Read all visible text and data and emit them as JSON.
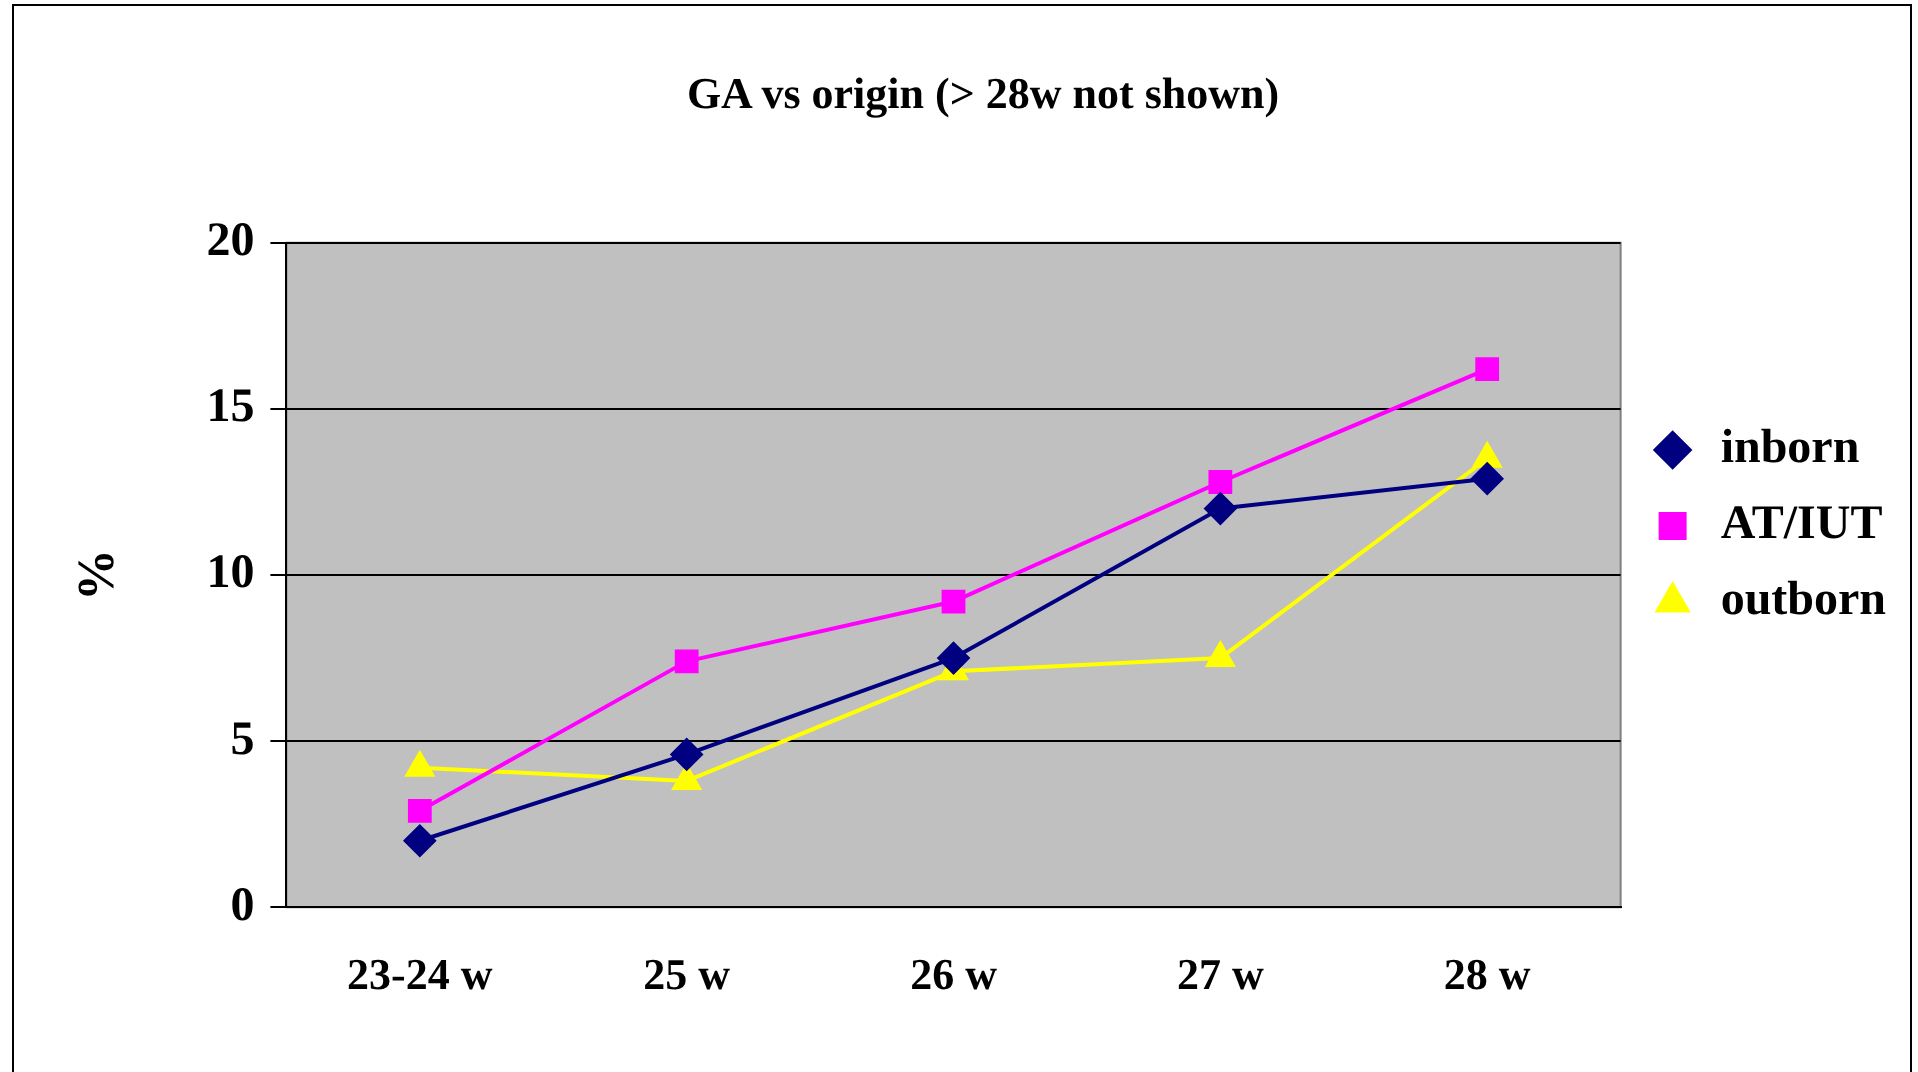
{
  "chart_data": {
    "type": "line",
    "title": "GA vs origin (> 28w not shown)",
    "ylabel": "%",
    "categories": [
      "23-24 w",
      "25 w",
      "26 w",
      "27 w",
      "28 w"
    ],
    "series": [
      {
        "name": "inborn",
        "color": "#000080",
        "marker": "diamond",
        "values": [
          2.0,
          4.6,
          7.5,
          12.0,
          12.9
        ]
      },
      {
        "name": "AT/IUT",
        "color": "#ff00ff",
        "marker": "square",
        "values": [
          2.9,
          7.4,
          9.2,
          12.8,
          16.2
        ]
      },
      {
        "name": "outborn",
        "color": "#ffff00",
        "marker": "triangle",
        "values": [
          4.2,
          3.8,
          7.1,
          7.5,
          13.5
        ]
      }
    ],
    "ylim": [
      0,
      20
    ],
    "yticks": [
      0,
      5,
      10,
      15,
      20
    ],
    "grid": "y",
    "legend": "right"
  }
}
